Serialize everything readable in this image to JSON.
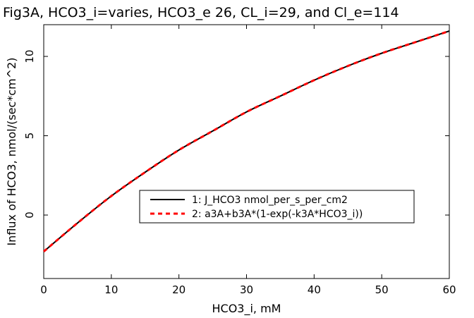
{
  "chart_data": {
    "type": "line",
    "title": "Fig3A, HCO3_i=varies, HCO3_e 26, CL_i=29, and Cl_e=114",
    "xlabel": "HCO3_i, mM",
    "ylabel": "Influx of HCO3, nmol/(sec*cm^2)",
    "xlim": [
      0,
      60
    ],
    "ylim": [
      -4,
      12
    ],
    "xticks": [
      0,
      10,
      20,
      30,
      40,
      50,
      60
    ],
    "yticks": [
      0,
      5,
      10
    ],
    "grid": false,
    "legend_position": "center-right",
    "x": [
      0,
      5,
      10,
      15,
      20,
      25,
      30,
      35,
      40,
      45,
      50,
      55,
      60
    ],
    "series": [
      {
        "name": "1: J_HCO3 nmol_per_s_per_cm2",
        "color": "#000000",
        "style": "solid",
        "values": [
          -2.3,
          -0.5,
          1.2,
          2.7,
          4.1,
          5.3,
          6.5,
          7.5,
          8.5,
          9.4,
          10.2,
          10.9,
          11.6
        ]
      },
      {
        "name": "2: a3A+b3A*(1-exp(-k3A*HCO3_i))",
        "color": "#ff0000",
        "style": "dashed",
        "values": [
          -2.3,
          -0.5,
          1.2,
          2.7,
          4.1,
          5.3,
          6.5,
          7.5,
          8.5,
          9.4,
          10.2,
          10.9,
          11.6
        ]
      }
    ]
  }
}
